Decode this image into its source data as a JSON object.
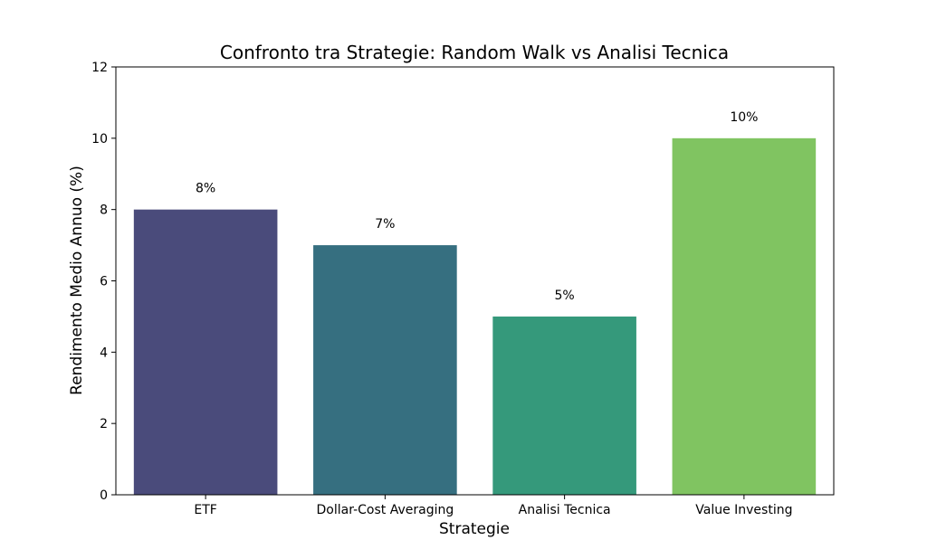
{
  "chart_data": {
    "type": "bar",
    "title": "Confronto tra Strategie: Random Walk vs Analisi Tecnica",
    "xlabel": "Strategie",
    "ylabel": "Rendimento Medio Annuo (%)",
    "categories": [
      "ETF",
      "Dollar-Cost Averaging",
      "Analisi Tecnica",
      "Value Investing"
    ],
    "values": [
      8,
      7,
      5,
      10
    ],
    "data_labels": [
      "8%",
      "7%",
      "5%",
      "10%"
    ],
    "colors": [
      "#4a4b7b",
      "#366f80",
      "#35997b",
      "#80c461"
    ],
    "ylim": [
      0,
      12
    ],
    "yticks": [
      0,
      2,
      4,
      6,
      8,
      10,
      12
    ],
    "ytick_labels": [
      "0",
      "2",
      "4",
      "6",
      "8",
      "10",
      "12"
    ],
    "grid": false,
    "legend": "none"
  }
}
